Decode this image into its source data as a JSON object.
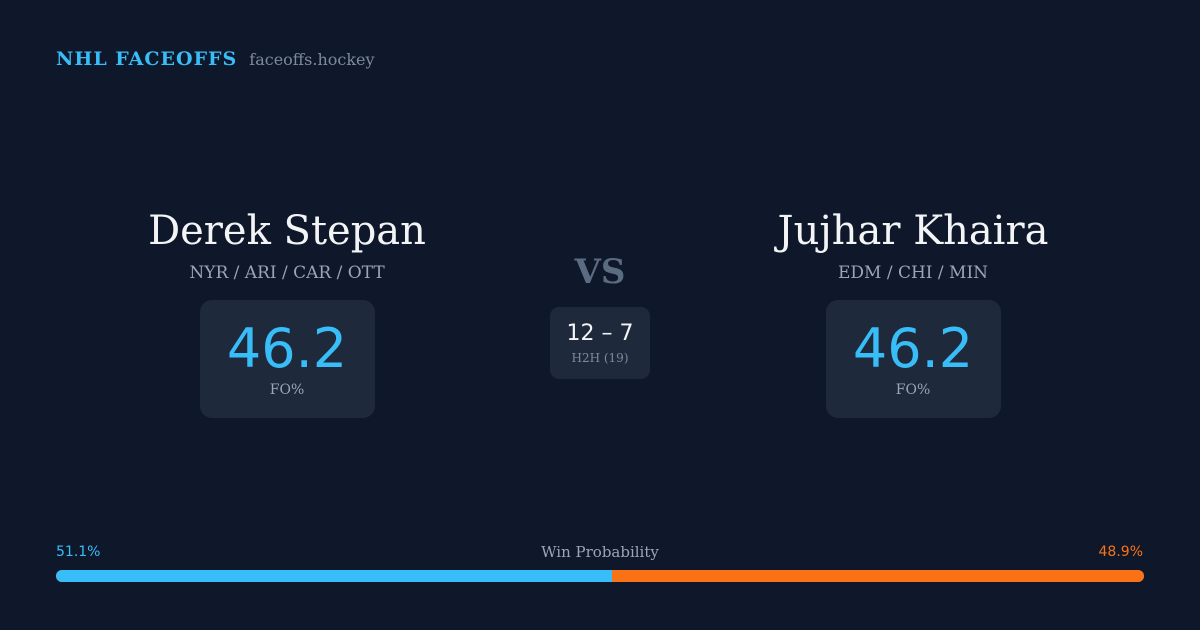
{
  "brand": {
    "title": "NHL FACEOFFS",
    "url": "faceoffs.hockey"
  },
  "player_left": {
    "name": "Derek Stepan",
    "teams": "NYR / ARI / CAR / OTT",
    "stat_value": "46.2",
    "stat_label": "FO%"
  },
  "player_right": {
    "name": "Jujhar Khaira",
    "teams": "EDM / CHI / MIN",
    "stat_value": "46.2",
    "stat_label": "FO%"
  },
  "versus": {
    "label": "VS",
    "score": "12 – 7",
    "h2h_label": "H2H (19)"
  },
  "win_probability": {
    "title": "Win Probability",
    "left_label": "51.1%",
    "right_label": "48.9%",
    "left_value": 51.1,
    "right_value": 48.9,
    "left_color": "#38bdf8",
    "right_color": "#f97316"
  },
  "colors": {
    "background": "#0f172a",
    "card": "#1e293b",
    "accent": "#38bdf8"
  }
}
